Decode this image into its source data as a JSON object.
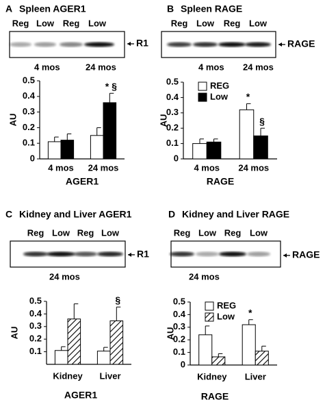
{
  "chart_data": [
    {
      "type": "bar",
      "panel": "A",
      "title": "Spleen AGER1",
      "blot": {
        "lanes": [
          "Reg",
          "Low",
          "Reg",
          "Low"
        ],
        "marker": "R1",
        "groups": [
          "4 mos",
          "24 mos"
        ]
      },
      "categories": [
        "4 mos",
        "24 mos"
      ],
      "series": [
        {
          "color": "#ffffff",
          "values": [
            0.11,
            0.15
          ],
          "errors": [
            0.03,
            0.05
          ]
        },
        {
          "color": "#000000",
          "values": [
            0.12,
            0.36
          ],
          "errors": [
            0.04,
            0.06
          ],
          "annotations": [
            null,
            "* §"
          ]
        }
      ],
      "ylabel": "AU",
      "xlabel": "AGER1",
      "ylim": [
        0,
        0.5
      ],
      "yticks": [
        0,
        0.1,
        0.2,
        0.3,
        0.4,
        0.5
      ]
    },
    {
      "type": "bar",
      "panel": "B",
      "title": "Spleen RAGE",
      "blot": {
        "lanes": [
          "Reg",
          "Low",
          "Reg",
          "Low"
        ],
        "marker": "RAGE",
        "groups": [
          "4 mos",
          "24 mos"
        ]
      },
      "categories": [
        "4 mos",
        "24 mos"
      ],
      "series": [
        {
          "name": "REG",
          "color": "#ffffff",
          "values": [
            0.1,
            0.32
          ],
          "errors": [
            0.03,
            0.04
          ],
          "annotations": [
            null,
            "*"
          ]
        },
        {
          "name": "Low",
          "color": "#000000",
          "values": [
            0.11,
            0.15
          ],
          "errors": [
            0.02,
            0.05
          ],
          "annotations": [
            null,
            "§"
          ]
        }
      ],
      "legend": "upper left",
      "ylabel": "AU",
      "xlabel": "RAGE",
      "ylim": [
        0,
        0.5
      ],
      "yticks": [
        0,
        0.1,
        0.2,
        0.3,
        0.4,
        0.5
      ]
    },
    {
      "type": "bar",
      "panel": "C",
      "title": "Kidney and Liver  AGER1",
      "blot": {
        "lanes": [
          "Reg",
          "Low",
          "Reg",
          "Low"
        ],
        "marker": "R1",
        "groups": [
          "24 mos"
        ]
      },
      "categories": [
        "Kidney",
        "Liver"
      ],
      "series": [
        {
          "color": "#ffffff",
          "values": [
            0.11,
            0.105
          ],
          "errors": [
            0.03,
            0.03
          ]
        },
        {
          "color": "#ffffff",
          "hatch": true,
          "values": [
            0.36,
            0.345
          ],
          "errors": [
            0.12,
            0.11
          ],
          "annotations": [
            null,
            "§"
          ]
        }
      ],
      "ylabel": "AU",
      "xlabel": "AGER1",
      "ylim": [
        0,
        0.5
      ],
      "yticks": [
        0.1,
        0.2,
        0.3,
        0.4,
        0.5
      ]
    },
    {
      "type": "bar",
      "panel": "D",
      "title": "Kidney and Liver RAGE",
      "blot": {
        "lanes": [
          "Reg",
          "Low",
          "Reg",
          "Low"
        ],
        "marker": "RAGE",
        "groups": [
          "24 mos"
        ]
      },
      "categories": [
        "Kidney",
        "Liver"
      ],
      "series": [
        {
          "name": "REG",
          "color": "#ffffff",
          "values": [
            0.24,
            0.32
          ],
          "errors": [
            0.07,
            0.04
          ],
          "annotations": [
            null,
            "*"
          ]
        },
        {
          "name": "Low",
          "color": "#ffffff",
          "hatch": true,
          "values": [
            0.065,
            0.11
          ],
          "errors": [
            0.025,
            0.04
          ]
        }
      ],
      "legend": "upper left",
      "ylabel": "AU",
      "xlabel": "RAGE",
      "ylim": [
        0,
        0.5
      ],
      "yticks": [
        0,
        0.1,
        0.2,
        0.3,
        0.4,
        0.5
      ]
    }
  ]
}
